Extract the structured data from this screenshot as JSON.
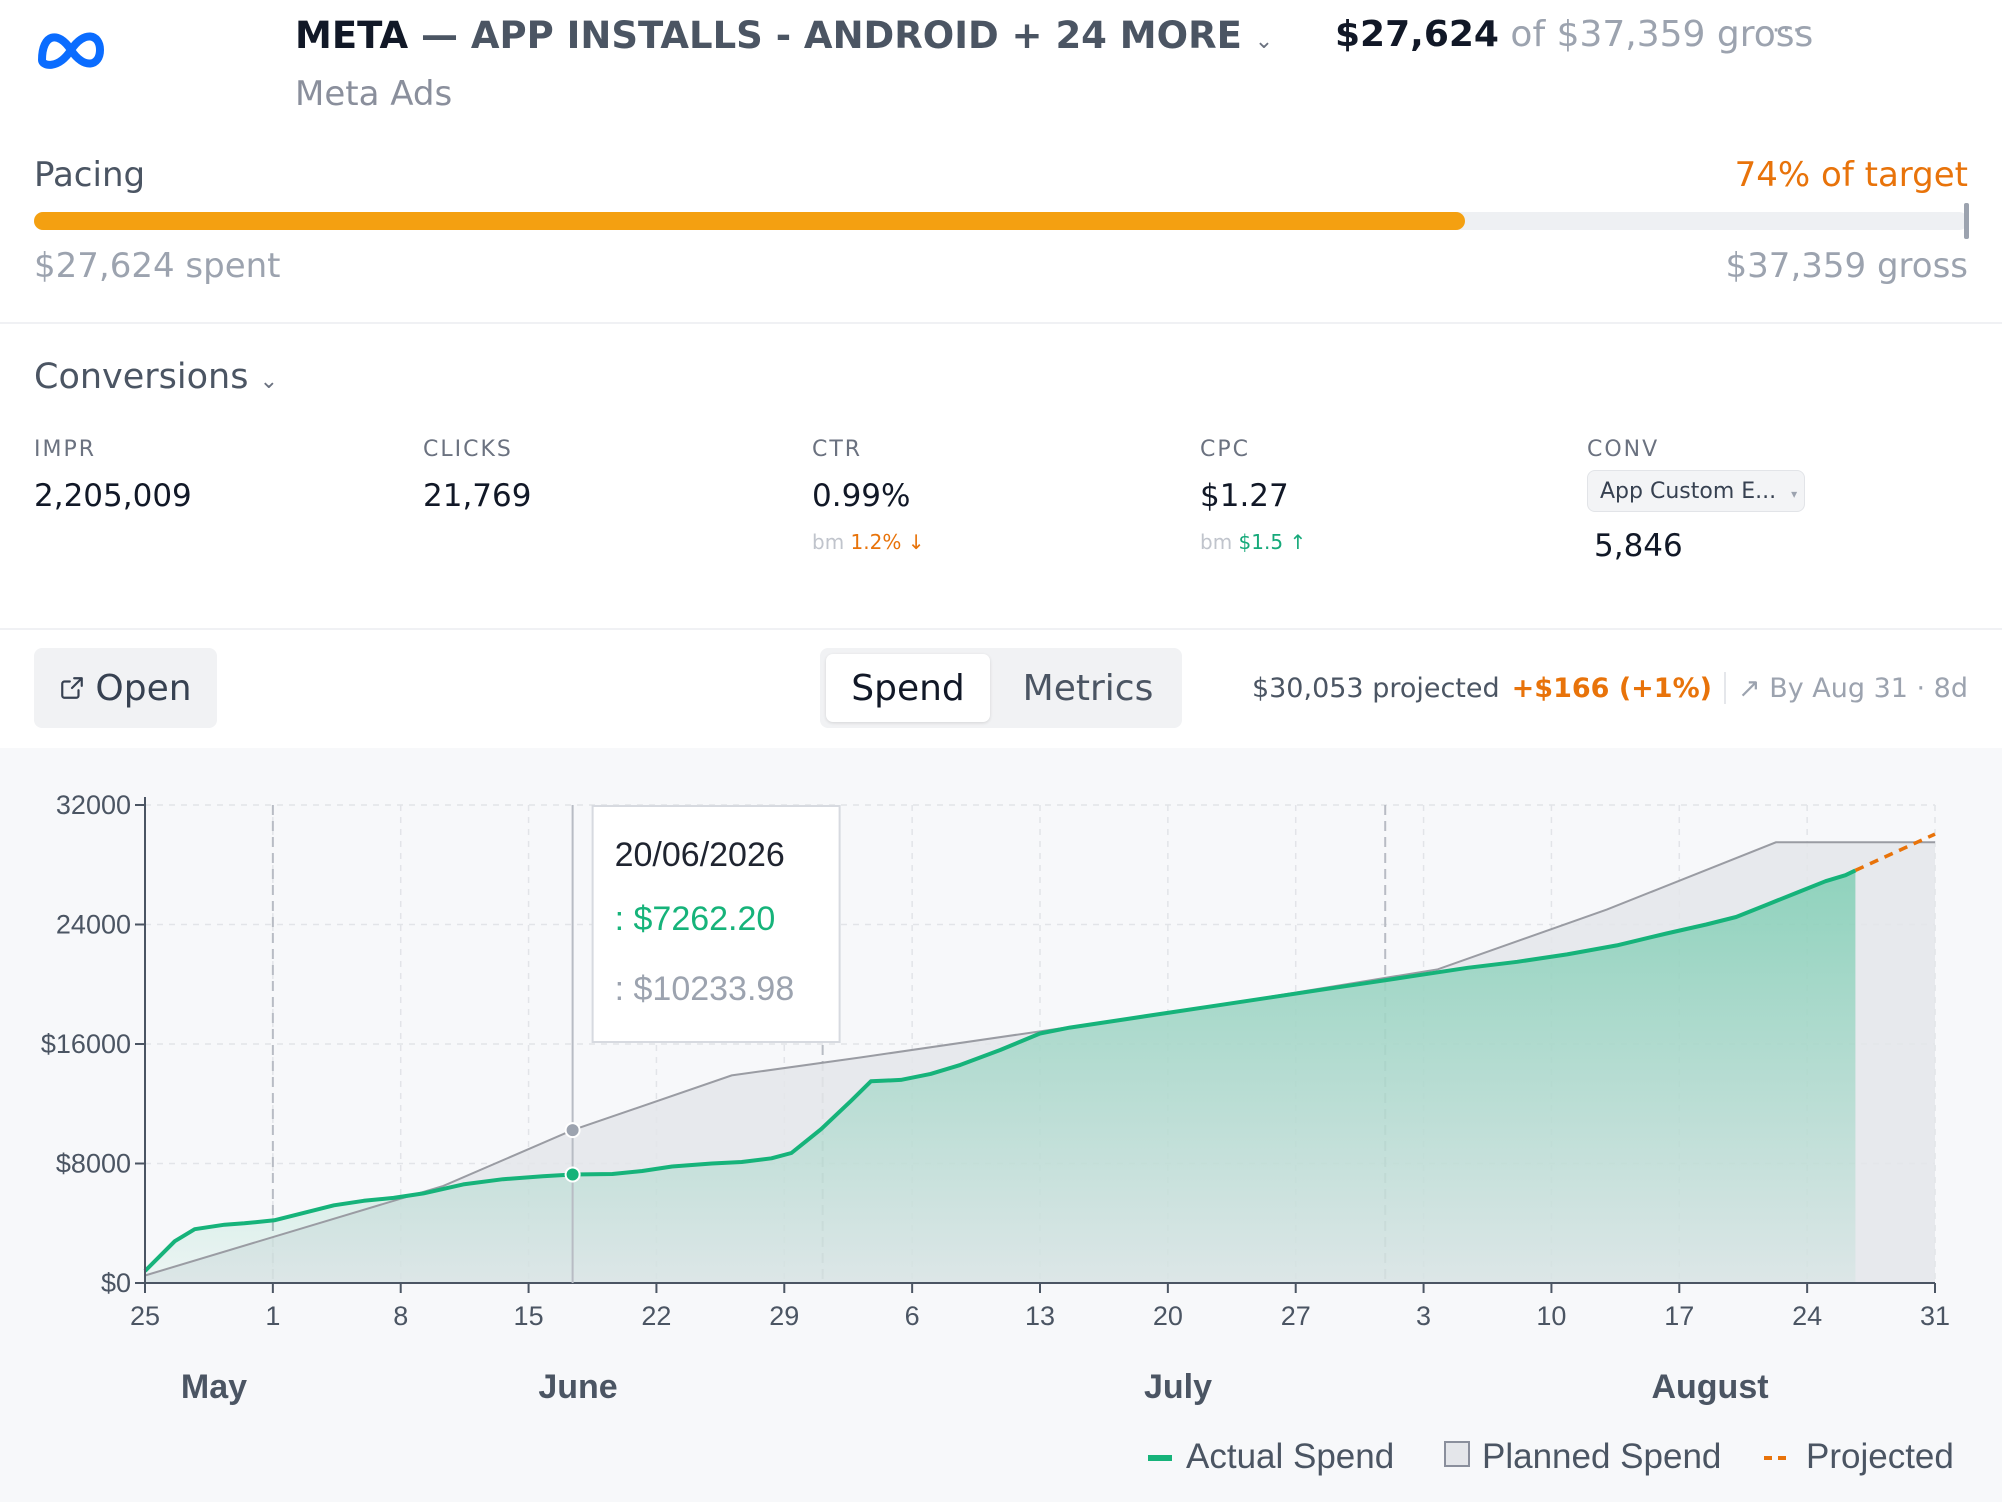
{
  "header": {
    "brand": "META",
    "campaign_title": "— APP INSTALLS - ANDROID + 24 MORE",
    "platform": "Meta Ads",
    "spent_amount": "$27,624",
    "gross_text": "of $37,359 gross",
    "more_icon": "ellipsis-icon"
  },
  "pacing": {
    "label": "Pacing",
    "percent_text": "74% of target",
    "progress_fraction": 0.74,
    "spent_text": "$27,624 spent",
    "gross_text": "$37,359 gross",
    "colors": {
      "fill": "#f4a011",
      "accent": "#e8730a"
    }
  },
  "conversions": {
    "toggle_label": "Conversions",
    "metrics": [
      {
        "label": "IMPR",
        "value": "2,205,009"
      },
      {
        "label": "CLICKS",
        "value": "21,769"
      },
      {
        "label": "CTR",
        "value": "0.99%",
        "bm_prefix": "bm",
        "bm_value": "1.2%",
        "bm_arrow": "↓",
        "bm_color": "#e8730a"
      },
      {
        "label": "CPC",
        "value": "$1.27",
        "bm_prefix": "bm",
        "bm_value": "$1.5",
        "bm_arrow": "↑",
        "bm_color": "#16a97a"
      },
      {
        "label": "CONV",
        "select_value": "App Custom E...",
        "value": "5,846"
      }
    ]
  },
  "toolbar": {
    "open_label": "Open",
    "tabs": [
      {
        "label": "Spend",
        "active": true
      },
      {
        "label": "Metrics",
        "active": false
      }
    ],
    "projected_text": "$30,053 projected",
    "projected_delta": "+$166 (+1%)",
    "by_text": "By Aug 31 · 8d"
  },
  "chart_data": {
    "type": "area",
    "y_ticks": [
      "$0",
      "$8000",
      "$16000",
      "24000",
      "32000"
    ],
    "ylim": [
      0,
      32000
    ],
    "x_ticks": [
      "25",
      "1",
      "8",
      "15",
      "22",
      "29",
      "6",
      "13",
      "20",
      "27",
      "3",
      "10",
      "17",
      "24",
      "31"
    ],
    "month_labels": [
      "May",
      "June",
      "July",
      "August"
    ],
    "grid": true,
    "legend_position": "bottom-right",
    "series": [
      {
        "name": "Actual Spend",
        "color": "#16b37a",
        "points": [
          [
            0,
            800
          ],
          [
            3,
            2800
          ],
          [
            5,
            3600
          ],
          [
            8,
            3900
          ],
          [
            10,
            4000
          ],
          [
            13,
            4200
          ],
          [
            16,
            4700
          ],
          [
            19,
            5200
          ],
          [
            22,
            5500
          ],
          [
            25,
            5700
          ],
          [
            28,
            6000
          ],
          [
            32,
            6600
          ],
          [
            36,
            6950
          ],
          [
            40,
            7150
          ],
          [
            43,
            7262
          ],
          [
            47,
            7300
          ],
          [
            50,
            7500
          ],
          [
            53,
            7800
          ],
          [
            57,
            8000
          ],
          [
            60,
            8100
          ],
          [
            63,
            8350
          ],
          [
            65,
            8700
          ],
          [
            68,
            10300
          ],
          [
            71,
            12200
          ],
          [
            73,
            13500
          ],
          [
            76,
            13600
          ],
          [
            79,
            14000
          ],
          [
            82,
            14600
          ],
          [
            86,
            15600
          ],
          [
            90,
            16700
          ],
          [
            93,
            17100
          ],
          [
            98,
            17600
          ],
          [
            103,
            18100
          ],
          [
            108,
            18600
          ],
          [
            113,
            19100
          ],
          [
            118,
            19600
          ],
          [
            123,
            20100
          ],
          [
            128,
            20600
          ],
          [
            133,
            21100
          ],
          [
            138,
            21500
          ],
          [
            143,
            22000
          ],
          [
            148,
            22600
          ],
          [
            153,
            23400
          ],
          [
            157,
            24000
          ],
          [
            160,
            24500
          ],
          [
            163,
            25300
          ],
          [
            166,
            26100
          ],
          [
            169,
            26900
          ],
          [
            171,
            27300
          ],
          [
            172,
            27624
          ]
        ]
      },
      {
        "name": "Planned Spend",
        "color": "#9a9ca3",
        "points": [
          [
            0,
            500
          ],
          [
            30,
            6500
          ],
          [
            43,
            10234
          ],
          [
            59,
            13900
          ],
          [
            72,
            15100
          ],
          [
            107,
            18500
          ],
          [
            130,
            21000
          ],
          [
            147,
            25000
          ],
          [
            164,
            29500
          ],
          [
            172,
            29500
          ],
          [
            180,
            29500
          ]
        ]
      },
      {
        "name": "Projected",
        "color": "#e8730a",
        "points": [
          [
            172,
            27624
          ],
          [
            180,
            30053
          ]
        ]
      }
    ],
    "tooltip": {
      "date": "20/06/2026",
      "actual": ": $7262.20",
      "planned": ": $10233.98"
    }
  }
}
